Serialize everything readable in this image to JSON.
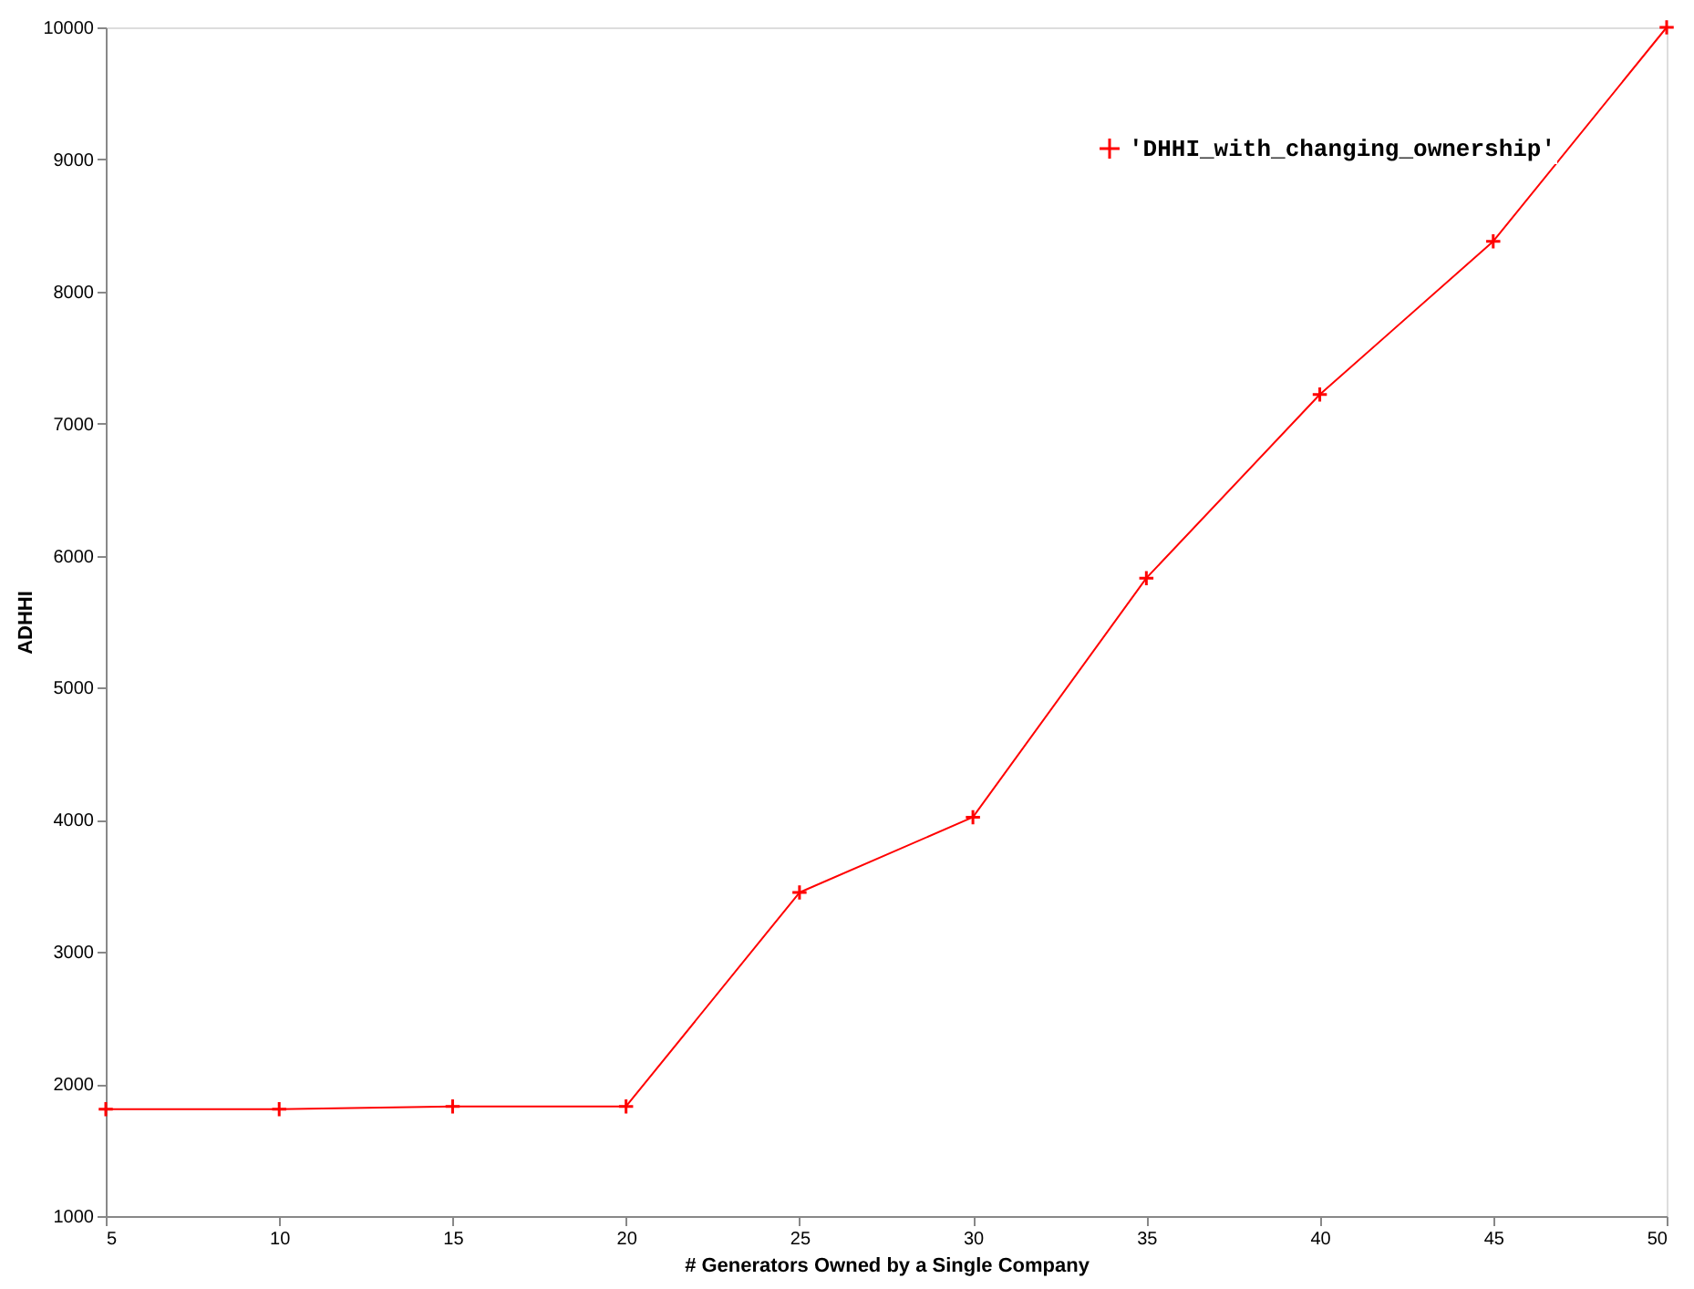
{
  "chart_data": {
    "type": "line",
    "xlabel": "# Generators Owned by a Single Company",
    "ylabel": "ADHHI",
    "x": [
      5,
      10,
      15,
      20,
      25,
      30,
      35,
      40,
      45,
      50
    ],
    "series": [
      {
        "name": "'DHHI_with_changing_ownership'",
        "color": "#ff0000",
        "values": [
          1810,
          1810,
          1830,
          1830,
          3450,
          4020,
          5830,
          7220,
          8380,
          10000
        ]
      }
    ],
    "xlim": [
      5,
      50
    ],
    "xticks": [
      5,
      10,
      15,
      20,
      25,
      30,
      35,
      40,
      45,
      50
    ],
    "ylim": [
      1000,
      10000
    ],
    "yticks": [
      1000,
      2000,
      3000,
      4000,
      5000,
      6000,
      7000,
      8000,
      9000,
      10000
    ],
    "grid": false,
    "legend": "top right",
    "marker": "cross",
    "line_style": "solid"
  }
}
